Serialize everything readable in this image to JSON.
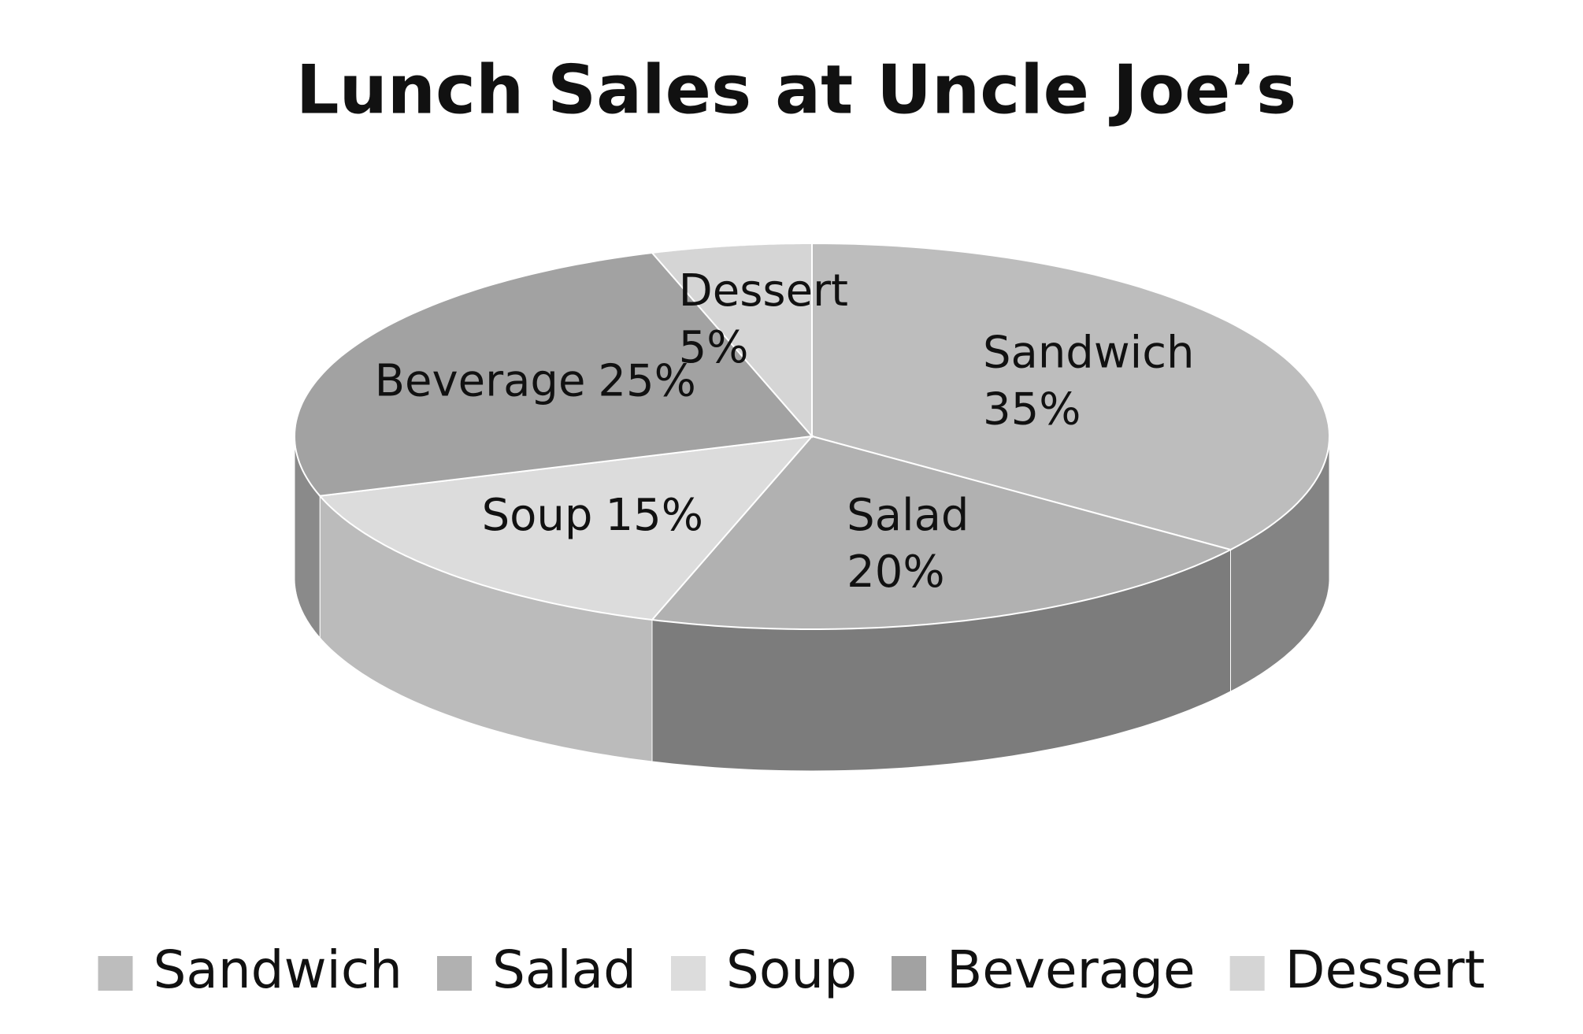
{
  "chart_data": {
    "type": "pie",
    "title": "Lunch Sales at Uncle Joe’s",
    "categories": [
      "Sandwich",
      "Salad",
      "Soup",
      "Beverage",
      "Dessert"
    ],
    "values": [
      35,
      20,
      15,
      25,
      5
    ],
    "value_labels": [
      "35%",
      "20%",
      "15%",
      "25%",
      "5%"
    ],
    "colors": [
      "#bdbdbd",
      "#b1b1b1",
      "#dcdcdc",
      "#a2a2a2",
      "#d5d5d5"
    ],
    "legend": "bottom"
  }
}
